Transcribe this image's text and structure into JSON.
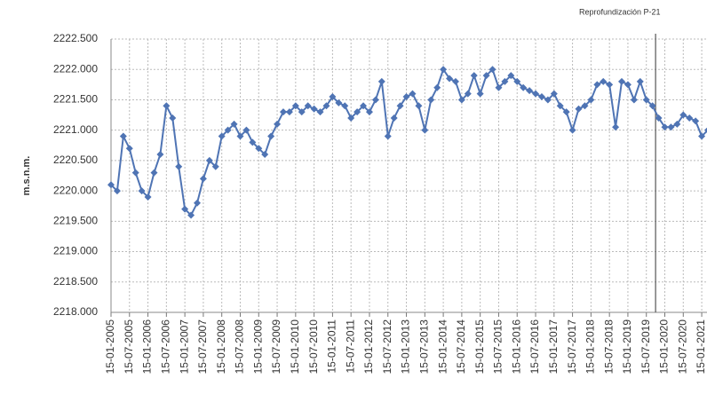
{
  "chart_data": {
    "type": "line",
    "y_label": "m.s.n.m.",
    "annotation": {
      "text": "Reprofundización P-21",
      "x": "15-10-2019"
    },
    "color": "#4f74b4",
    "grid": true,
    "ylim": [
      {
        "value": 2218,
        "label": "2218.000"
      },
      {
        "value": 2222.5,
        "label": "2222.500"
      }
    ],
    "yticks": [
      {
        "value": 2218,
        "label": "2218.000"
      },
      {
        "value": 2218.5,
        "label": "2218.500"
      },
      {
        "value": 2219,
        "label": "2219.000"
      },
      {
        "value": 2219.5,
        "label": "2219.500"
      },
      {
        "value": 2220,
        "label": "2220.000"
      },
      {
        "value": 2220.5,
        "label": "2220.500"
      },
      {
        "value": 2221,
        "label": "2221.000"
      },
      {
        "value": 2221.5,
        "label": "2221.500"
      },
      {
        "value": 2222,
        "label": "2222.000"
      },
      {
        "value": 2222.5,
        "label": "2222.500"
      }
    ],
    "xlim": [
      "15-01-2005",
      "15-03-2021"
    ],
    "xticks": [
      "15-01-2005",
      "15-07-2005",
      "15-01-2006",
      "15-07-2006",
      "15-01-2007",
      "15-07-2007",
      "15-01-2008",
      "15-07-2008",
      "15-01-2009",
      "15-07-2009",
      "15-01-2010",
      "15-07-2010",
      "15-01-2011",
      "15-07-2011",
      "15-01-2012",
      "15-07-2012",
      "15-01-2013",
      "15-07-2013",
      "15-01-2014",
      "15-07-2014",
      "15-01-2015",
      "15-07-2015",
      "15-01-2016",
      "15-07-2016",
      "15-01-2017",
      "15-07-2017",
      "15-01-2018",
      "15-07-2018",
      "15-01-2019",
      "15-07-2019",
      "15-01-2020",
      "15-07-2020",
      "15-01-2021"
    ],
    "x": [
      "15-01-2005",
      "15-03-2005",
      "15-05-2005",
      "15-07-2005",
      "15-09-2005",
      "15-11-2005",
      "15-01-2006",
      "15-03-2006",
      "15-05-2006",
      "15-07-2006",
      "15-09-2006",
      "15-11-2006",
      "15-01-2007",
      "15-03-2007",
      "15-05-2007",
      "15-07-2007",
      "15-09-2007",
      "15-11-2007",
      "15-01-2008",
      "15-03-2008",
      "15-05-2008",
      "15-07-2008",
      "15-09-2008",
      "15-11-2008",
      "15-01-2009",
      "15-03-2009",
      "15-05-2009",
      "15-07-2009",
      "15-09-2009",
      "15-11-2009",
      "15-01-2010",
      "15-03-2010",
      "15-05-2010",
      "15-07-2010",
      "15-09-2010",
      "15-11-2010",
      "15-01-2011",
      "15-03-2011",
      "15-05-2011",
      "15-07-2011",
      "15-09-2011",
      "15-11-2011",
      "15-01-2012",
      "15-03-2012",
      "15-05-2012",
      "15-07-2012",
      "15-09-2012",
      "15-11-2012",
      "15-01-2013",
      "15-03-2013",
      "15-05-2013",
      "15-07-2013",
      "15-09-2013",
      "15-11-2013",
      "15-01-2014",
      "15-03-2014",
      "15-05-2014",
      "15-07-2014",
      "15-09-2014",
      "15-11-2014",
      "15-01-2015",
      "15-03-2015",
      "15-05-2015",
      "15-07-2015",
      "15-09-2015",
      "15-11-2015",
      "15-01-2016",
      "15-03-2016",
      "15-05-2016",
      "15-07-2016",
      "15-09-2016",
      "15-11-2016",
      "15-01-2017",
      "15-03-2017",
      "15-05-2017",
      "15-07-2017",
      "15-09-2017",
      "15-11-2017",
      "15-01-2018",
      "15-03-2018",
      "15-05-2018",
      "15-07-2018",
      "15-09-2018",
      "15-11-2018",
      "15-01-2019",
      "15-03-2019",
      "15-05-2019",
      "15-07-2019",
      "15-09-2019",
      "15-11-2019",
      "15-01-2020",
      "15-03-2020",
      "15-05-2020",
      "15-07-2020",
      "15-09-2020",
      "15-11-2020",
      "15-01-2021",
      "15-03-2021"
    ],
    "values": [
      2220.1,
      2220.0,
      2220.9,
      2220.7,
      2220.3,
      2220.0,
      2219.9,
      2220.3,
      2220.6,
      2221.4,
      2221.2,
      2220.4,
      2219.7,
      2219.6,
      2219.8,
      2220.2,
      2220.5,
      2220.4,
      2220.9,
      2221.0,
      2221.1,
      2220.9,
      2221.0,
      2220.8,
      2220.7,
      2220.6,
      2220.9,
      2221.1,
      2221.3,
      2221.3,
      2221.4,
      2221.3,
      2221.4,
      2221.35,
      2221.3,
      2221.4,
      2221.55,
      2221.45,
      2221.4,
      2221.2,
      2221.3,
      2221.4,
      2221.3,
      2221.5,
      2221.8,
      2220.9,
      2221.2,
      2221.4,
      2221.55,
      2221.6,
      2221.4,
      2221.0,
      2221.5,
      2221.7,
      2222.0,
      2221.85,
      2221.8,
      2221.5,
      2221.6,
      2221.9,
      2221.6,
      2221.9,
      2222.0,
      2221.7,
      2221.8,
      2221.9,
      2221.8,
      2221.7,
      2221.65,
      2221.6,
      2221.55,
      2221.5,
      2221.6,
      2221.4,
      2221.3,
      2221.0,
      2221.35,
      2221.4,
      2221.5,
      2221.75,
      2221.8,
      2221.75,
      2221.05,
      2221.8,
      2221.75,
      2221.5,
      2221.8,
      2221.5,
      2221.4,
      2221.2,
      2221.05,
      2221.05,
      2221.1,
      2221.25,
      2221.2,
      2221.15,
      2220.9,
      2221.0
    ]
  }
}
